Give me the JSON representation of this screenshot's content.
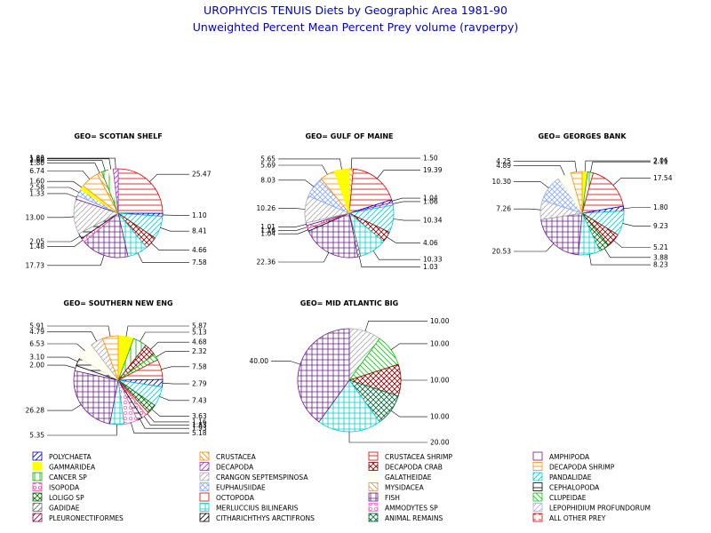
{
  "chart_data": {
    "type": "pie",
    "title": "UROPHYCIS TENUIS Diets by Geographic Area 1981-90",
    "subtitle": "Unweighted Percent Mean Percent Prey  volume (ravperpy)",
    "legend": {
      "placement": "bottom",
      "entries": [
        {
          "name": "POLYCHAETA",
          "color": "#0000cc",
          "pattern": "diag"
        },
        {
          "name": "CRUSTACEA",
          "color": "#ff8c00",
          "pattern": "diag2"
        },
        {
          "name": "CRUSTACEA SHRIMP",
          "color": "#dd0000",
          "pattern": "horiz"
        },
        {
          "name": "AMPHIPODA",
          "color": "#6a1b8a",
          "pattern": "none"
        },
        {
          "name": "GAMMARIDEA",
          "color": "#ffff00",
          "pattern": "solid"
        },
        {
          "name": "DECAPODA",
          "color": "#9933cc",
          "pattern": "diag"
        },
        {
          "name": "DECAPODA CRAB",
          "color": "#8b0000",
          "pattern": "cross"
        },
        {
          "name": "DECAPODA SHRIMP",
          "color": "#ff8c00",
          "pattern": "horiz"
        },
        {
          "name": "CANCER SP",
          "color": "#00aa00",
          "pattern": "vert"
        },
        {
          "name": "CRANGON SEPTEMSPINOSA",
          "color": "#aaaaaa",
          "pattern": "diag"
        },
        {
          "name": "GALATHEIDAE",
          "color": "#ffffcc",
          "pattern": "diag2"
        },
        {
          "name": "PANDALIDAE",
          "color": "#00cccc",
          "pattern": "diag"
        },
        {
          "name": "ISOPODA",
          "color": "#ff44aa",
          "pattern": "circle"
        },
        {
          "name": "EUPHAUSIIDAE",
          "color": "#88aaff",
          "pattern": "xcross"
        },
        {
          "name": "MYSIDACEA",
          "color": "#cc9966",
          "pattern": "diag2"
        },
        {
          "name": "CEPHALOPODA",
          "color": "#000000",
          "pattern": "horiz"
        },
        {
          "name": "LOLIGO SP",
          "color": "#006600",
          "pattern": "xcross"
        },
        {
          "name": "OCTOPODA",
          "color": "#dd0000",
          "pattern": "none"
        },
        {
          "name": "FISH",
          "color": "#6a1b8a",
          "pattern": "grid"
        },
        {
          "name": "CLUPEIDAE",
          "color": "#00cc00",
          "pattern": "diag2"
        },
        {
          "name": "GADIDAE",
          "color": "#666666",
          "pattern": "diag"
        },
        {
          "name": "MERLUCCIUS BILINEARIS",
          "color": "#00cccc",
          "pattern": "grid"
        },
        {
          "name": "AMMODYTES SP",
          "color": "#ff66cc",
          "pattern": "circle"
        },
        {
          "name": "LEPOPHIDIUM PROFUNDORUM",
          "color": "#aaaaff",
          "pattern": "diag"
        },
        {
          "name": "PLEURONECTIFORMES",
          "color": "#800040",
          "pattern": "diag"
        },
        {
          "name": "CITHARICHTHYS ARCTIFRONS",
          "color": "#000000",
          "pattern": "diag"
        },
        {
          "name": "ANIMAL REMAINS",
          "color": "#006633",
          "pattern": "xcross"
        },
        {
          "name": "ALL OTHER PREY",
          "color": "#dd0000",
          "pattern": "dash"
        }
      ]
    },
    "charts": [
      {
        "title": "GEO= SCOTIAN SHELF",
        "slices": [
          {
            "prey": "CRUSTACEA SHRIMP",
            "value": 25.47
          },
          {
            "prey": "POLYCHAETA",
            "value": 1.1
          },
          {
            "prey": "PANDALIDAE",
            "value": 8.41
          },
          {
            "prey": "DECAPODA CRAB",
            "value": 4.66
          },
          {
            "prey": "MERLUCCIUS BILINEARIS",
            "value": 7.58
          },
          {
            "prey": "FISH",
            "value": 17.73
          },
          {
            "prey": "ISOPODA",
            "value": 1.48
          },
          {
            "prey": "CEPHALOPODA",
            "value": 2.05
          },
          {
            "prey": "CRANGON SEPTEMSPINOSA",
            "value": 13.0
          },
          {
            "prey": "AMPHIPODA",
            "value": 1.33
          },
          {
            "prey": "EUPHAUSIIDAE",
            "value": 2.58
          },
          {
            "prey": "GAMMARIDEA",
            "value": 1.6
          },
          {
            "prey": "DECAPODA SHRIMP",
            "value": 6.74
          },
          {
            "prey": "CRUSTACEA",
            "value": 1.8
          },
          {
            "prey": "CANCER SP",
            "value": 2.6
          },
          {
            "prey": "GALATHEIDAE",
            "value": 1.69
          },
          {
            "prey": "DECAPODA",
            "value": 1.83
          }
        ]
      },
      {
        "title": "GEO= GULF OF MAINE",
        "slices": [
          {
            "prey": "CRUSTACEA",
            "value": 1.5
          },
          {
            "prey": "CRUSTACEA SHRIMP",
            "value": 19.39
          },
          {
            "prey": "POLYCHAETA",
            "value": 1.04
          },
          {
            "prey": "DECAPODA",
            "value": 1.06
          },
          {
            "prey": "PANDALIDAE",
            "value": 10.34
          },
          {
            "prey": "DECAPODA CRAB",
            "value": 4.06
          },
          {
            "prey": "MERLUCCIUS BILINEARIS",
            "value": 10.33
          },
          {
            "prey": "GADIDAE",
            "value": 1.03
          },
          {
            "prey": "FISH",
            "value": 22.36
          },
          {
            "prey": "CEPHALOPODA",
            "value": 1.04
          },
          {
            "prey": "ISOPODA",
            "value": 1.16
          },
          {
            "prey": "AMPHIPODA",
            "value": 1.01
          },
          {
            "prey": "CRANGON SEPTEMSPINOSA",
            "value": 10.26
          },
          {
            "prey": "EUPHAUSIIDAE",
            "value": 8.03
          },
          {
            "prey": "DECAPODA SHRIMP",
            "value": 5.69
          },
          {
            "prey": "GAMMARIDEA",
            "value": 5.65
          }
        ]
      },
      {
        "title": "GEO= GEORGES BANK",
        "slices": [
          {
            "prey": "GAMMARIDEA",
            "value": 2.06
          },
          {
            "prey": "CANCER SP",
            "value": 2.11
          },
          {
            "prey": "CRUSTACEA SHRIMP",
            "value": 17.54
          },
          {
            "prey": "POLYCHAETA",
            "value": 1.8
          },
          {
            "prey": "PANDALIDAE",
            "value": 9.23
          },
          {
            "prey": "DECAPODA CRAB",
            "value": 5.21
          },
          {
            "prey": "LOLIGO SP",
            "value": 3.88
          },
          {
            "prey": "MERLUCCIUS BILINEARIS",
            "value": 8.23
          },
          {
            "prey": "FISH",
            "value": 20.53
          },
          {
            "prey": "CRANGON SEPTEMSPINOSA",
            "value": 7.26
          },
          {
            "prey": "EUPHAUSIIDAE",
            "value": 10.3
          },
          {
            "prey": "GALATHEIDAE",
            "value": 4.89
          },
          {
            "prey": "DECAPODA SHRIMP",
            "value": 4.25
          }
        ]
      },
      {
        "title": "GEO= SOUTHERN NEW ENG",
        "slices": [
          {
            "prey": "GAMMARIDEA",
            "value": 5.87
          },
          {
            "prey": "CANCER SP",
            "value": 5.13
          },
          {
            "prey": "DECAPODA CRAB",
            "value": 4.68
          },
          {
            "prey": "CLUPEIDAE",
            "value": 2.32
          },
          {
            "prey": "CRUSTACEA SHRIMP",
            "value": 7.58
          },
          {
            "prey": "POLYCHAETA",
            "value": 2.79
          },
          {
            "prey": "PANDALIDAE",
            "value": 7.43
          },
          {
            "prey": "LOLIGO SP",
            "value": 3.63
          },
          {
            "prey": "OCTOPODA",
            "value": 1.16
          },
          {
            "prey": "ISOPODA",
            "value": 1.83
          },
          {
            "prey": "CEPHALOPODA",
            "value": 1.93
          },
          {
            "prey": "AMMODYTES SP",
            "value": 5.18
          },
          {
            "prey": "MERLUCCIUS BILINEARIS",
            "value": 5.35
          },
          {
            "prey": "FISH",
            "value": 26.28
          },
          {
            "prey": "AMPHIPODA",
            "value": 2.0
          },
          {
            "prey": "CEPHALOPODA",
            "value": 3.1
          },
          {
            "prey": "GALATHEIDAE",
            "value": 6.53
          },
          {
            "prey": "CRANGON SEPTEMSPINOSA",
            "value": 4.79
          },
          {
            "prey": "DECAPODA SHRIMP",
            "value": 5.91
          }
        ]
      },
      {
        "title": "GEO= MID ATLANTIC BIG",
        "slices": [
          {
            "prey": "CRANGON SEPTEMSPINOSA",
            "value": 10.0
          },
          {
            "prey": "CLUPEIDAE",
            "value": 10.0
          },
          {
            "prey": "DECAPODA CRAB",
            "value": 10.0
          },
          {
            "prey": "ANIMAL REMAINS",
            "value": 10.0
          },
          {
            "prey": "MERLUCCIUS BILINEARIS",
            "value": 20.0
          },
          {
            "prey": "FISH",
            "value": 40.0
          }
        ]
      }
    ]
  }
}
